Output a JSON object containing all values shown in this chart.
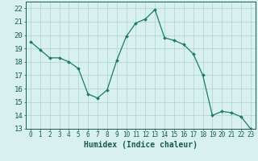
{
  "x": [
    0,
    1,
    2,
    3,
    4,
    5,
    6,
    7,
    8,
    9,
    10,
    11,
    12,
    13,
    14,
    15,
    16,
    17,
    18,
    19,
    20,
    21,
    22,
    23
  ],
  "y": [
    19.5,
    18.9,
    18.3,
    18.3,
    18.0,
    17.5,
    15.6,
    15.3,
    15.9,
    18.1,
    19.9,
    20.9,
    21.2,
    21.9,
    19.8,
    19.6,
    19.3,
    18.6,
    17.0,
    14.0,
    14.3,
    14.2,
    13.9,
    13.0
  ],
  "line_color": "#1a7a6e",
  "marker": "D",
  "marker_size": 2.0,
  "linewidth": 0.9,
  "bg_color": "#d8f0ee",
  "grid_color": "#aed4cf",
  "grid_color_minor": "#c8e8e4",
  "tick_label_color": "#1a5a52",
  "xlabel": "Humidex (Indice chaleur)",
  "xlabel_fontsize": 7,
  "ylim": [
    13,
    22.5
  ],
  "yticks": [
    13,
    14,
    15,
    16,
    17,
    18,
    19,
    20,
    21,
    22
  ],
  "xticks": [
    0,
    1,
    2,
    3,
    4,
    5,
    6,
    7,
    8,
    9,
    10,
    11,
    12,
    13,
    14,
    15,
    16,
    17,
    18,
    19,
    20,
    21,
    22,
    23
  ],
  "tick_fontsize": 5.5,
  "ytick_fontsize": 6.5,
  "spine_color": "#1a5a52"
}
